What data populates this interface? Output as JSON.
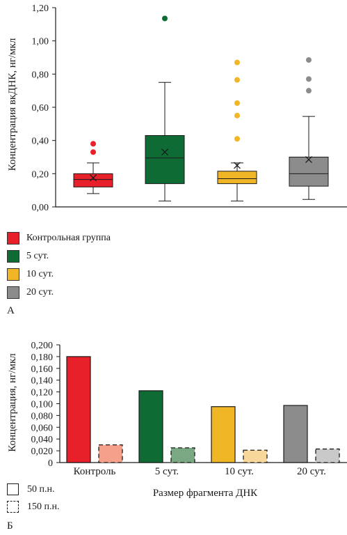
{
  "chart_data": [
    {
      "type": "box",
      "ylabel": "Концентрация вкДНК,  нг/мкл",
      "ylim": [
        0,
        1.2
      ],
      "yticks": [
        "0,00",
        "0,20",
        "0,40",
        "0,60",
        "0,80",
        "1,00",
        "1,20"
      ],
      "series": [
        {
          "name": "Контрольная группа",
          "color": "#e8202a",
          "min": 0.08,
          "q1": 0.12,
          "median": 0.165,
          "q3": 0.2,
          "max": 0.265,
          "mean": 0.175,
          "outliers": [
            0.33,
            0.38
          ]
        },
        {
          "name": "5 сут.",
          "color": "#0e6b33",
          "min": 0.035,
          "q1": 0.14,
          "median": 0.295,
          "q3": 0.43,
          "max": 0.75,
          "mean": 0.33,
          "outliers": [
            1.135
          ]
        },
        {
          "name": "10 сут.",
          "color": "#f1b626",
          "min": 0.035,
          "q1": 0.14,
          "median": 0.17,
          "q3": 0.215,
          "max": 0.265,
          "mean": 0.25,
          "outliers": [
            0.41,
            0.55,
            0.625,
            0.765,
            0.87
          ]
        },
        {
          "name": "20 сут.",
          "color": "#8c8c8c",
          "min": 0.045,
          "q1": 0.125,
          "median": 0.2,
          "q3": 0.3,
          "max": 0.545,
          "mean": 0.285,
          "outliers": [
            0.7,
            0.77,
            0.885
          ]
        }
      ],
      "panel_label": "А"
    },
    {
      "type": "bar",
      "ylabel": "Концентрация, нг/мкл",
      "xlabel": "Размер фрагмента ДНК",
      "ylim": [
        0,
        0.2
      ],
      "yticks": [
        "0",
        "0,020",
        "0,040",
        "0,060",
        "0,080",
        "0,100",
        "0,120",
        "0,140",
        "0,160",
        "0,180",
        "0,200"
      ],
      "categories": [
        "Контроль",
        "5 сут.",
        "10 сут.",
        "20 сут."
      ],
      "series": [
        {
          "name": "50 п.н.",
          "values": [
            0.18,
            0.122,
            0.095,
            0.097
          ],
          "colors": [
            "#e8202a",
            "#0e6b33",
            "#f1b626",
            "#8c8c8c"
          ]
        },
        {
          "name": "150 п.н.",
          "values": [
            0.03,
            0.025,
            0.021,
            0.023
          ],
          "colors": [
            "#f4a08b",
            "#7aa883",
            "#f8d79a",
            "#c9c9c9"
          ]
        }
      ],
      "panel_label": "Б"
    }
  ]
}
